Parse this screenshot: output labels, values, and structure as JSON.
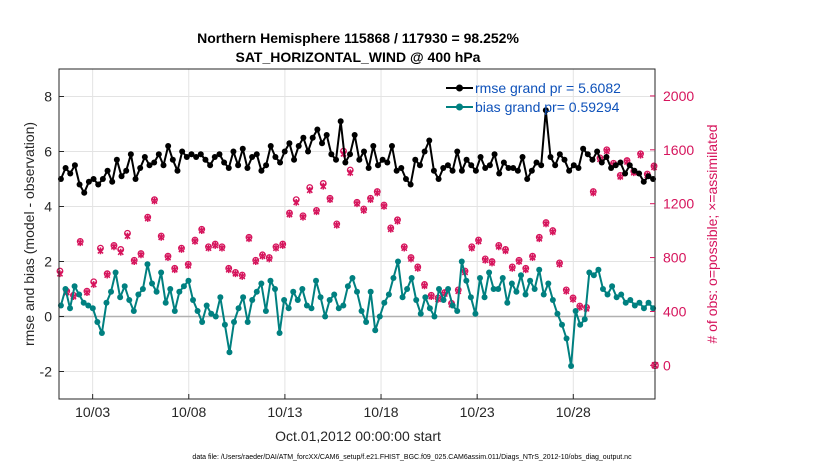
{
  "chart_data": {
    "type": "line",
    "title": "Northern Hemisphere 115868 / 117930 = 98.252%",
    "subtitle": "SAT_HORIZONTAL_WIND @ 400 hPa",
    "xlabel": "Oct.01,2012 00:00:00 start",
    "ylabel": "rmse and bias (model - observation)",
    "ylabel_right": "# of obs: o=possible; ×=assimilated",
    "footnote": "data file: /Users/raeder/DAI/ATM_forcXX/CAM6_setup/f.e21.FHIST_BGC.f09_025.CAM6assim.011/Diags_NTrS_2012-10/obs_diag_output.nc",
    "x_ticks": [
      3,
      8,
      13,
      18,
      23,
      28
    ],
    "x_tick_labels": [
      "10/03",
      "10/08",
      "10/13",
      "10/18",
      "10/23",
      "10/28"
    ],
    "xlim": [
      1.25,
      32.25
    ],
    "ylim": [
      -3,
      9
    ],
    "y_ticks": [
      -2,
      0,
      2,
      4,
      6,
      8
    ],
    "ylim_right": [
      -250,
      2200
    ],
    "y_ticks_right": [
      0,
      400,
      800,
      1200,
      1600,
      2000
    ],
    "grid": true,
    "legend_position": "top-right",
    "colors": {
      "rmse": "#000000",
      "bias": "#008080",
      "counts": "#d6145c",
      "zero_line": "#b0b0b0"
    },
    "series": [
      {
        "name": "rmse grand pr = 5.6082",
        "axis": "left",
        "values": [
          5.0,
          5.4,
          5.2,
          5.5,
          4.8,
          4.5,
          4.9,
          5.0,
          4.8,
          5.0,
          5.3,
          4.9,
          5.7,
          5.1,
          5.3,
          5.9,
          5.0,
          5.4,
          5.8,
          5.5,
          5.6,
          5.9,
          5.5,
          6.2,
          5.7,
          5.3,
          6.0,
          5.8,
          5.9,
          5.8,
          5.9,
          5.7,
          5.5,
          5.8,
          5.9,
          5.6,
          5.4,
          6.0,
          5.5,
          6.1,
          5.4,
          5.8,
          5.9,
          5.3,
          5.5,
          6.2,
          5.8,
          5.6,
          6.0,
          6.3,
          5.7,
          6.2,
          6.5,
          6.0,
          6.5,
          6.8,
          6.3,
          6.6,
          5.9,
          5.7,
          7.1,
          5.6,
          5.9,
          6.6,
          5.7,
          6.0,
          5.4,
          6.2,
          5.5,
          5.7,
          5.6,
          6.2,
          5.3,
          5.4,
          5.0,
          4.8,
          5.7,
          5.5,
          6.0,
          6.4,
          5.3,
          5.0,
          5.4,
          5.5,
          5.3,
          6.0,
          5.3,
          5.7,
          5.5,
          5.3,
          5.8,
          5.4,
          5.5,
          5.9,
          5.2,
          5.6,
          5.4,
          5.4,
          5.3,
          5.8,
          5.0,
          5.3,
          5.6,
          5.5,
          7.5,
          5.8,
          5.5,
          5.9,
          5.7,
          5.3,
          5.5,
          5.4,
          6.1,
          5.9,
          5.7,
          6.0,
          5.6,
          5.8,
          5.4,
          5.5,
          5.6,
          5.2,
          5.5,
          5.3,
          5.2,
          4.9,
          5.1,
          5.0
        ]
      },
      {
        "name": "bias grand pr= 0.59294",
        "axis": "left",
        "values": [
          0.4,
          1.0,
          0.3,
          1.1,
          0.8,
          0.5,
          0.4,
          0.3,
          -0.2,
          -0.6,
          0.5,
          0.9,
          1.6,
          0.7,
          1.1,
          0.6,
          0.2,
          0.8,
          1.0,
          1.9,
          1.2,
          0.9,
          1.6,
          0.5,
          1.0,
          0.2,
          0.9,
          1.1,
          1.3,
          0.6,
          0.2,
          -0.2,
          0.4,
          0.1,
          0.0,
          0.7,
          -0.3,
          -1.3,
          -0.2,
          0.3,
          0.7,
          -0.2,
          0.6,
          0.9,
          1.2,
          0.2,
          1.3,
          1.0,
          -0.6,
          0.6,
          0.3,
          0.9,
          0.6,
          1.0,
          0.4,
          0.3,
          1.3,
          0.7,
          0.0,
          0.6,
          0.8,
          0.3,
          0.4,
          1.1,
          1.4,
          0.9,
          0.2,
          -0.2,
          0.9,
          -0.5,
          0.0,
          0.5,
          0.8,
          1.4,
          2.0,
          0.7,
          1.0,
          1.4,
          0.6,
          0.1,
          0.7,
          0.3,
          0.0,
          1.0,
          0.6,
          1.0,
          0.4,
          0.2,
          2.0,
          1.3,
          0.7,
          0.1,
          1.4,
          0.7,
          1.6,
          1.0,
          1.0,
          1.4,
          0.5,
          1.2,
          0.9,
          1.5,
          0.8,
          1.3,
          1.0,
          1.7,
          0.8,
          1.2,
          0.6,
          0.1,
          -0.3,
          -0.8,
          -1.8,
          0.2,
          -0.3,
          -0.1,
          1.6,
          1.5,
          1.7,
          1.0,
          0.8,
          1.1,
          0.7,
          0.8,
          0.5,
          0.6,
          0.4,
          0.5,
          0.3,
          0.5,
          0.3
        ]
      },
      {
        "name": "# of obs possible",
        "axis": "right",
        "marker": "circle",
        "values": [
          700,
          550,
          520,
          920,
          550,
          620,
          870,
          680,
          890,
          860,
          980,
          780,
          830,
          1100,
          1230,
          960,
          810,
          720,
          870,
          750,
          930,
          1010,
          880,
          900,
          880,
          720,
          690,
          670,
          950,
          780,
          820,
          800,
          880,
          900,
          1130,
          1230,
          1110,
          1320,
          1150,
          1350,
          1240,
          1050,
          1590,
          1450,
          1210,
          1160,
          1240,
          1290,
          1190,
          1020,
          1080,
          880,
          800,
          730,
          600,
          520,
          500,
          540,
          460,
          560,
          700,
          880,
          930,
          790,
          770,
          890,
          860,
          730,
          780,
          720,
          810,
          950,
          1060,
          1000,
          760,
          560,
          500,
          440,
          430,
          1290,
          1540,
          1600,
          1500,
          1410,
          1520,
          1440,
          1570,
          1420,
          1480
        ]
      },
      {
        "name": "# of obs assimilated",
        "axis": "right",
        "marker": "x",
        "values": [
          680,
          540,
          510,
          910,
          540,
          600,
          850,
          670,
          880,
          840,
          960,
          770,
          820,
          1090,
          1220,
          950,
          800,
          710,
          860,
          740,
          920,
          1000,
          870,
          890,
          870,
          710,
          680,
          660,
          940,
          770,
          810,
          790,
          870,
          890,
          1120,
          1210,
          1100,
          1300,
          1140,
          1330,
          1230,
          1040,
          1570,
          1430,
          1200,
          1150,
          1230,
          1280,
          1180,
          1010,
          1070,
          870,
          790,
          720,
          590,
          510,
          490,
          530,
          450,
          550,
          690,
          870,
          920,
          780,
          760,
          880,
          850,
          720,
          770,
          710,
          800,
          940,
          1050,
          990,
          750,
          550,
          490,
          430,
          420,
          1280,
          1530,
          1590,
          1490,
          1400,
          1510,
          1430,
          1560,
          1410,
          1470
        ]
      }
    ],
    "x_series_count": 128,
    "counts_x_start": 1.3,
    "counts_x_end": 32.2
  }
}
